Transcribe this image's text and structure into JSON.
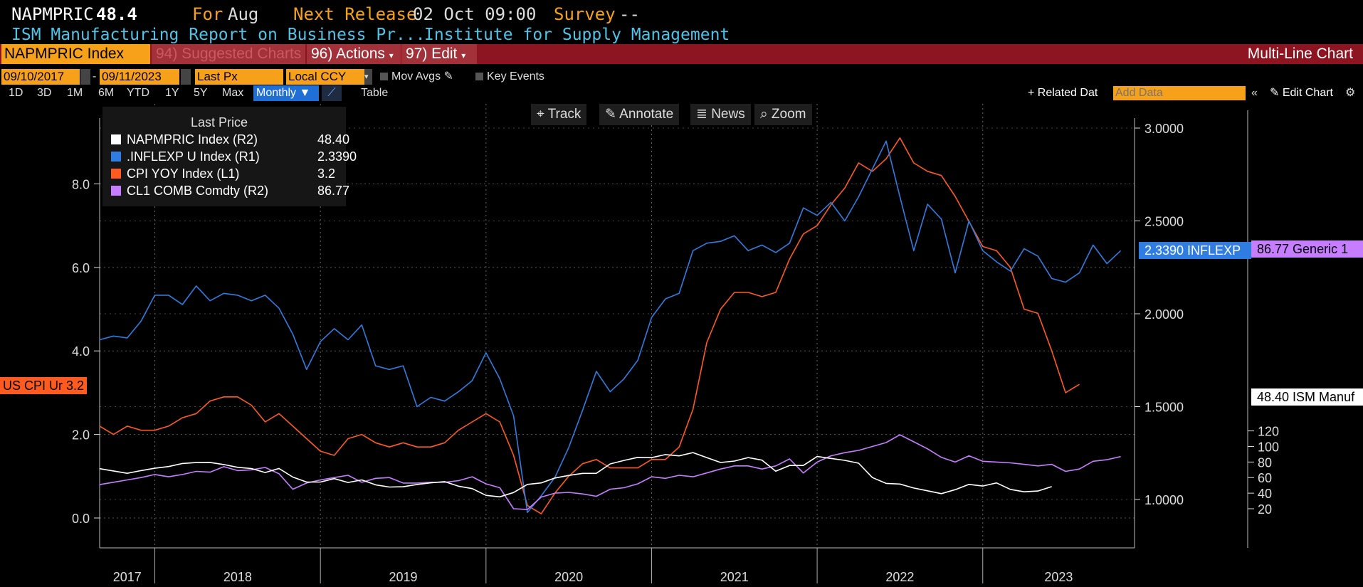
{
  "header": {
    "ticker": "NAPMPRIC",
    "value": "48.4",
    "for_label": "For",
    "for_value": "Aug",
    "next_release_label": "Next Release",
    "next_release_value": "02 Oct 09:00",
    "survey_label": "Survey",
    "survey_value": "--",
    "description": "ISM Manufacturing Report on Business Pr...",
    "source": "Institute for Supply Management"
  },
  "toolbar": {
    "index_field": "NAPMPRIC Index",
    "suggested_charts": "94) Suggested Charts",
    "actions": "96) Actions",
    "edit": "97) Edit",
    "chart_kind": "Multi-Line Chart"
  },
  "controls": {
    "start_date": "09/10/2017",
    "end_date": "09/11/2023",
    "field": "Last Px",
    "currency": "Local CCY",
    "mov_avgs": "Mov Avgs",
    "key_events": "Key Events",
    "related_data": "+ Related Dat",
    "add_data_placeholder": "Add Data",
    "edit_chart": "Edit Chart",
    "ranges": [
      "1D",
      "3D",
      "1M",
      "6M",
      "YTD",
      "1Y",
      "5Y",
      "Max"
    ],
    "frequency": "Monthly",
    "table": "Table"
  },
  "tools": {
    "track": "Track",
    "annotate": "Annotate",
    "news": "News",
    "zoom": "Zoom"
  },
  "legend": {
    "title": "Last Price",
    "items": [
      {
        "label": "NAPMPRIC Index  (R2)",
        "value": "48.40",
        "color": "#ffffff"
      },
      {
        "label": ".INFLEXP U Index  (R1)",
        "value": "2.3390",
        "color": "#2f7de1"
      },
      {
        "label": "CPI YOY Index  (L1)",
        "value": "3.2",
        "color": "#ff5a1f"
      },
      {
        "label": "CL1 COMB Comdty  (R2)",
        "value": "86.77",
        "color": "#c77dff"
      }
    ]
  },
  "badges": {
    "cpi": "US CPI Ur 3.2",
    "inflexp": "2.3390 INFLEXP",
    "generic": "86.77 Generic 1",
    "ism": "48.40 ISM Manuf"
  },
  "chart_data": {
    "type": "line",
    "x_unit": "month",
    "x_range": [
      "2017-09",
      "2023-12"
    ],
    "x_tick_labels": [
      "2017",
      "2018",
      "2019",
      "2020",
      "2021",
      "2022",
      "2023"
    ],
    "axes": {
      "L1": {
        "ticks": [
          0.0,
          2.0,
          4.0,
          6.0,
          8.0
        ],
        "tick_labels": [
          "0.0",
          "2.0",
          "4.0",
          "6.0",
          "8.0"
        ]
      },
      "R1": {
        "ticks": [
          1.0,
          1.5,
          2.0,
          2.5,
          3.0
        ],
        "tick_labels": [
          "1.0000",
          "1.5000",
          "2.0000",
          "2.5000",
          "3.0000"
        ]
      },
      "R2": {
        "ticks": [
          20,
          40,
          60,
          80,
          100,
          120
        ],
        "tick_labels": [
          "20",
          "40",
          "60",
          "80",
          "100",
          "120"
        ]
      }
    },
    "grid": true,
    "series": [
      {
        "name": "CPI YOY Index",
        "axis": "L1",
        "color": "#ff5a1f",
        "start": "2017-09",
        "values": [
          2.2,
          2.0,
          2.2,
          2.1,
          2.1,
          2.2,
          2.4,
          2.5,
          2.8,
          2.9,
          2.9,
          2.7,
          2.3,
          2.5,
          2.2,
          1.9,
          1.6,
          1.5,
          1.9,
          2.0,
          1.8,
          1.7,
          1.8,
          1.7,
          1.7,
          1.8,
          2.1,
          2.3,
          2.5,
          2.3,
          1.5,
          0.3,
          0.1,
          0.6,
          1.0,
          1.3,
          1.4,
          1.2,
          1.2,
          1.2,
          1.4,
          1.4,
          1.7,
          2.6,
          4.2,
          5.0,
          5.4,
          5.4,
          5.3,
          5.4,
          6.2,
          6.8,
          7.0,
          7.5,
          7.9,
          8.5,
          8.3,
          8.6,
          9.1,
          8.5,
          8.3,
          8.2,
          7.7,
          7.1,
          6.5,
          6.4,
          6.0,
          5.0,
          4.9,
          4.0,
          3.0,
          3.2
        ]
      },
      {
        "name": ".INFLEXP U Index",
        "axis": "R1",
        "color": "#2f7de1",
        "start": "2017-09",
        "values": [
          1.86,
          1.88,
          1.87,
          1.96,
          2.1,
          2.1,
          2.05,
          2.15,
          2.07,
          2.11,
          2.1,
          2.07,
          2.1,
          2.03,
          1.89,
          1.7,
          1.85,
          1.92,
          1.86,
          1.94,
          1.72,
          1.7,
          1.72,
          1.5,
          1.55,
          1.53,
          1.58,
          1.64,
          1.79,
          1.65,
          1.45,
          0.93,
          1.02,
          1.12,
          1.28,
          1.48,
          1.69,
          1.58,
          1.65,
          1.75,
          1.98,
          2.08,
          2.11,
          2.34,
          2.38,
          2.39,
          2.42,
          2.34,
          2.37,
          2.33,
          2.38,
          2.57,
          2.53,
          2.6,
          2.5,
          2.63,
          2.78,
          2.93,
          2.63,
          2.34,
          2.59,
          2.51,
          2.22,
          2.5,
          2.34,
          2.28,
          2.23,
          2.35,
          2.31,
          2.19,
          2.17,
          2.22,
          2.37,
          2.27,
          2.34
        ]
      },
      {
        "name": "CL1 COMB Comdty",
        "axis": "R2",
        "color": "#c77dff",
        "start": "2017-09",
        "values": [
          51,
          54,
          57,
          60,
          64,
          61,
          64,
          68,
          67,
          74,
          69,
          70,
          73,
          65,
          45,
          53,
          57,
          60,
          63,
          54,
          59,
          60,
          53,
          53,
          54,
          54,
          56,
          61,
          52,
          47,
          20,
          19,
          35,
          40,
          41,
          39,
          36,
          45,
          47,
          52,
          61,
          59,
          63,
          61,
          66,
          71,
          75,
          75,
          71,
          75,
          84,
          66,
          80,
          88,
          92,
          95,
          100,
          105,
          115,
          106,
          97,
          86,
          80,
          88,
          81,
          80,
          79,
          77,
          75,
          77,
          68,
          71,
          81,
          83,
          87
        ]
      },
      {
        "name": "NAPMPRIC Index",
        "axis": "R2",
        "color": "#ffffff",
        "start": "2017-09",
        "values": [
          71.5,
          68.5,
          65.5,
          69.0,
          72.0,
          74.2,
          78.1,
          79.3,
          79.5,
          76.8,
          73.2,
          71.6,
          66.5,
          71.7,
          60.7,
          54.3,
          54.3,
          58.7,
          53.7,
          57.0,
          50.7,
          47.9,
          48.2,
          51.2,
          53.3,
          54.8,
          49.0,
          45.9,
          37.2,
          35.3,
          40.8,
          51.3,
          53.2,
          59.5,
          62.8,
          65.4,
          65.5,
          77.6,
          82.1,
          86.0,
          85.6,
          89.6,
          87.9,
          92.1,
          85.7,
          79.4,
          81.2,
          85.7,
          82.4,
          68.2,
          75.6,
          75.6,
          87.1,
          84.6,
          82.2,
          78.5,
          60.0,
          52.5,
          51.7,
          46.6,
          43.0,
          39.4,
          44.5,
          51.3,
          49.2,
          53.2,
          44.9,
          41.8,
          42.8,
          48.4
        ]
      }
    ]
  }
}
